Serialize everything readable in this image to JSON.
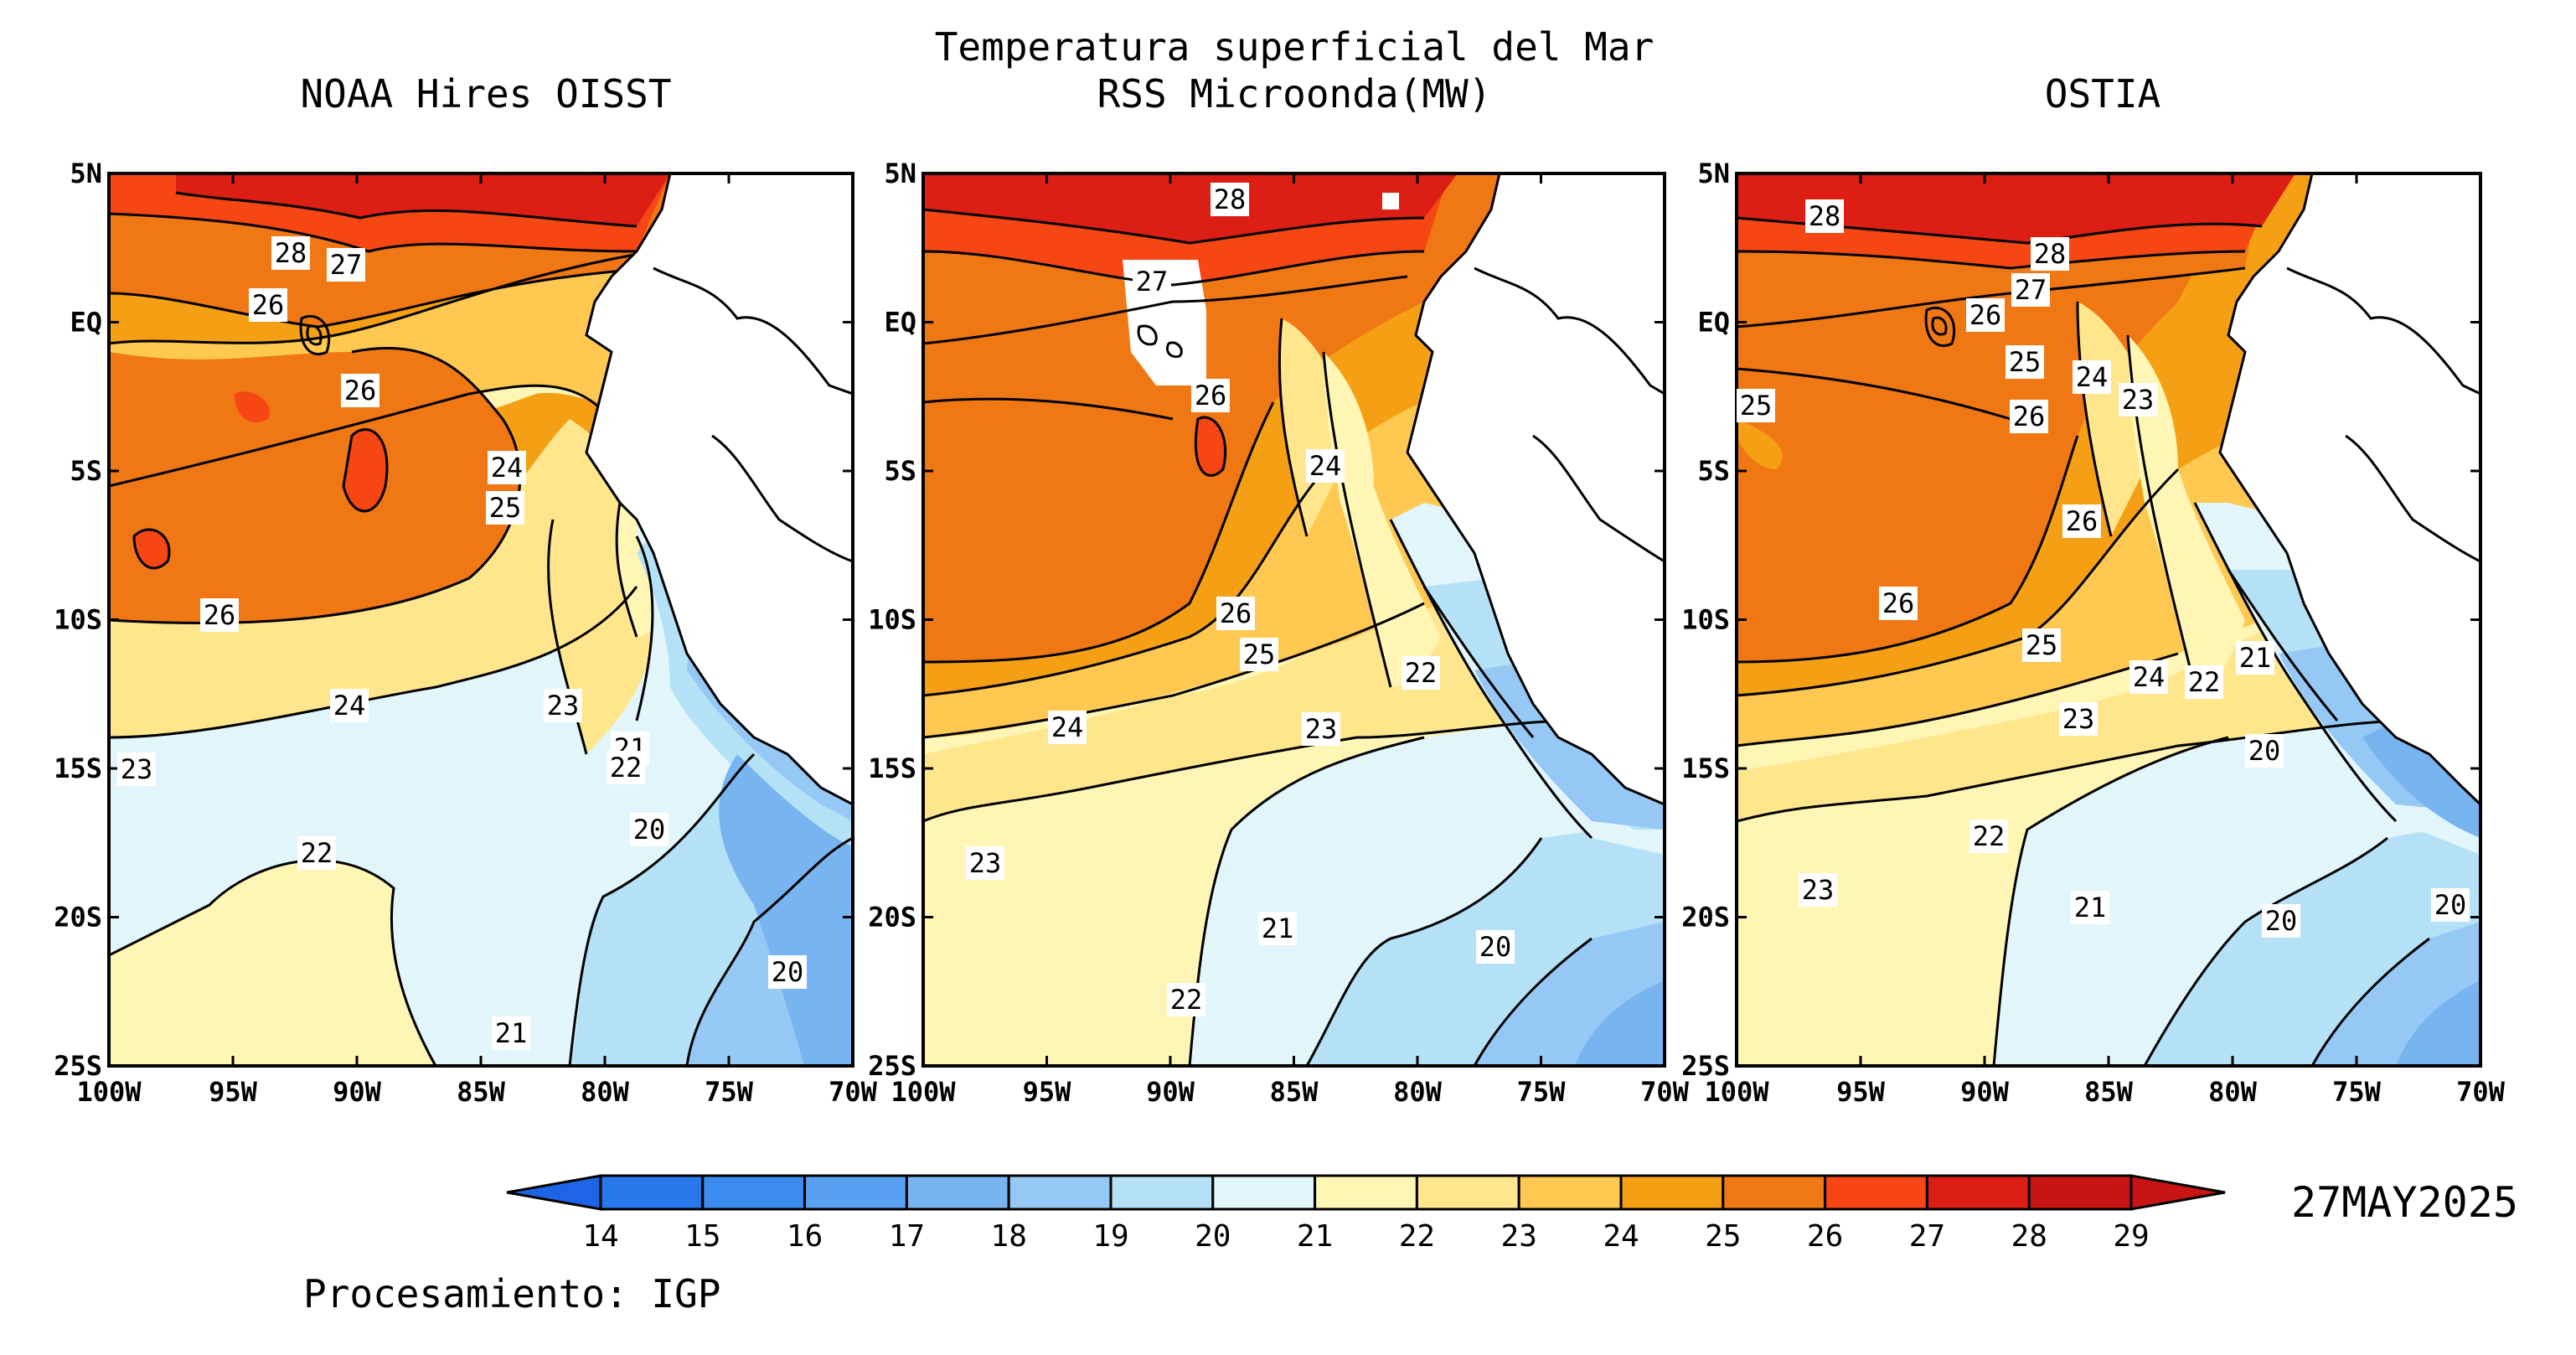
{
  "header": {
    "title_line1": "Temperatura superficial del Mar",
    "title_line2": "RSS Microonda(MW)"
  },
  "panels": [
    {
      "title": "NOAA Hires OISST",
      "contour_labels": [
        "28",
        "27",
        "26",
        "26",
        "24",
        "25",
        "26",
        "24",
        "23",
        "21",
        "22",
        "23",
        "22",
        "20",
        "20",
        "21"
      ]
    },
    {
      "title": "",
      "contour_labels": [
        "28",
        "27",
        "26",
        "24",
        "26",
        "25",
        "24",
        "23",
        "22",
        "23",
        "21",
        "22",
        "20"
      ]
    },
    {
      "title": "OSTIA",
      "contour_labels": [
        "28",
        "28",
        "27",
        "26",
        "25",
        "25",
        "24",
        "23",
        "26",
        "26",
        "26",
        "25",
        "24",
        "22",
        "21",
        "23",
        "20",
        "22",
        "23",
        "21",
        "20",
        "20"
      ]
    }
  ],
  "axes": {
    "x_ticks": [
      "100W",
      "95W",
      "90W",
      "85W",
      "80W",
      "75W",
      "70W"
    ],
    "y_ticks": [
      "5N",
      "EQ",
      "5S",
      "10S",
      "15S",
      "20S",
      "25S"
    ],
    "lon_range": [
      -100,
      -70
    ],
    "lat_range": [
      -25,
      5
    ]
  },
  "colorbar": {
    "ticks": [
      "14",
      "15",
      "16",
      "17",
      "18",
      "19",
      "20",
      "21",
      "22",
      "23",
      "24",
      "25",
      "26",
      "27",
      "28",
      "29"
    ],
    "colors": [
      "#1e64e6",
      "#2878eb",
      "#3c8cf0",
      "#5aa0f0",
      "#78b4f0",
      "#96c8f5",
      "#b4e1f5",
      "#e1f5fa",
      "#fff5b4",
      "#ffe68c",
      "#ffc850",
      "#f5a014",
      "#f07814",
      "#f54614",
      "#dc1e14",
      "#c81414"
    ]
  },
  "date": "27MAY2025",
  "credit": "Procesamiento: IGP"
}
